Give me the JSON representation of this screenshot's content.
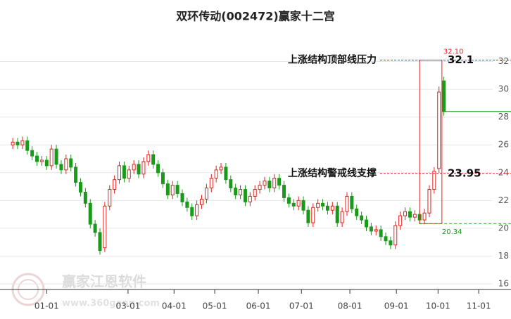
{
  "chart_data": {
    "type": "candlestick",
    "title": "双环传动(002472)赢家十二宫",
    "watermark": "赢家江恩软件",
    "watermark_url": "www.360gann.com",
    "up_color": "#e8201d",
    "down_color": "#1a9a1a",
    "xlim": [
      -0.6,
      101.7
    ],
    "ylim": [
      15.6,
      34.4
    ],
    "xticks": [
      {
        "value": 7.0,
        "label": "01-01"
      },
      {
        "value": 23.8,
        "label": "03-01"
      },
      {
        "value": 33.3,
        "label": "04-01"
      },
      {
        "value": 41.7,
        "label": "05-01"
      },
      {
        "value": 50.7,
        "label": "06-01"
      },
      {
        "value": 59.6,
        "label": "07-01"
      },
      {
        "value": 69.6,
        "label": "08-01"
      },
      {
        "value": 79.2,
        "label": "09-01"
      },
      {
        "value": 87.8,
        "label": "10-01"
      },
      {
        "value": 96.2,
        "label": "11-01"
      }
    ],
    "yticks": [
      16,
      18,
      20,
      22,
      24,
      26,
      28,
      30,
      32
    ],
    "grid": true,
    "open": [
      26.0,
      26.2,
      26.0,
      26.3,
      25.6,
      25.2,
      24.8,
      24.9,
      24.5,
      25.7,
      24.6,
      24.2,
      25.0,
      24.4,
      23.3,
      22.6,
      21.8,
      20.3,
      19.7,
      18.6,
      21.6,
      22.8,
      23.5,
      24.5,
      23.6,
      24.2,
      24.6,
      23.9,
      24.8,
      25.3,
      24.6,
      24.0,
      23.2,
      22.4,
      23.1,
      22.5,
      21.9,
      21.5,
      20.9,
      21.7,
      22.1,
      22.9,
      23.6,
      24.2,
      24.4,
      23.5,
      22.9,
      22.4,
      22.8,
      21.9,
      22.3,
      22.8,
      23.1,
      23.4,
      22.9,
      23.6,
      23.1,
      22.2,
      21.8,
      21.6,
      22.0,
      21.3,
      20.4,
      21.5,
      21.8,
      21.6,
      21.3,
      21.6,
      20.4,
      21.2,
      22.3,
      21.4,
      20.9,
      20.6,
      20.1,
      19.8,
      19.9,
      19.4,
      19.1,
      18.8,
      20.2,
      20.9,
      21.2,
      20.8,
      21.0,
      20.6,
      21.1,
      22.8,
      24.3,
      30.6
    ],
    "high": [
      26.5,
      26.5,
      26.6,
      26.6,
      25.9,
      25.5,
      25.2,
      25.2,
      26.0,
      26.0,
      24.9,
      25.3,
      25.3,
      24.7,
      23.6,
      22.9,
      22.1,
      20.6,
      20.0,
      21.9,
      23.1,
      23.8,
      24.8,
      24.8,
      24.5,
      24.9,
      24.9,
      25.1,
      25.6,
      25.6,
      24.9,
      24.3,
      23.5,
      23.4,
      23.4,
      22.8,
      22.2,
      21.8,
      22.0,
      22.4,
      23.2,
      23.9,
      24.5,
      24.7,
      24.7,
      23.8,
      23.2,
      23.1,
      23.1,
      22.6,
      23.1,
      23.4,
      23.7,
      23.7,
      23.9,
      23.9,
      23.4,
      22.5,
      22.1,
      22.3,
      22.3,
      21.6,
      21.8,
      22.1,
      22.1,
      21.9,
      21.9,
      21.9,
      21.5,
      22.6,
      22.6,
      21.7,
      21.2,
      20.9,
      20.4,
      20.2,
      20.2,
      19.7,
      19.4,
      20.5,
      21.2,
      21.5,
      21.5,
      21.3,
      21.3,
      21.4,
      23.1,
      24.4,
      30.2,
      30.9
    ],
    "low": [
      25.7,
      25.7,
      25.7,
      25.3,
      24.9,
      24.5,
      24.5,
      24.2,
      24.2,
      24.3,
      23.9,
      23.9,
      24.1,
      23.0,
      22.3,
      21.5,
      20.0,
      19.4,
      18.1,
      18.3,
      21.3,
      22.5,
      23.2,
      23.3,
      23.3,
      23.9,
      23.6,
      23.6,
      24.5,
      24.3,
      23.7,
      22.9,
      22.1,
      22.1,
      22.2,
      21.6,
      21.2,
      20.6,
      20.6,
      21.4,
      21.8,
      22.6,
      23.3,
      23.9,
      23.2,
      22.6,
      22.1,
      22.1,
      21.6,
      21.6,
      22.0,
      22.5,
      22.8,
      22.6,
      22.6,
      22.8,
      21.9,
      21.5,
      21.3,
      21.3,
      21.0,
      20.1,
      20.1,
      21.2,
      21.3,
      21.0,
      21.0,
      20.1,
      20.1,
      20.9,
      21.1,
      20.6,
      20.3,
      19.8,
      19.5,
      19.5,
      19.1,
      18.8,
      18.5,
      18.5,
      19.9,
      20.6,
      20.5,
      20.5,
      20.3,
      20.3,
      20.8,
      22.5,
      24.0,
      28.1
    ],
    "close": [
      26.2,
      26.0,
      26.3,
      25.6,
      25.2,
      24.8,
      24.9,
      24.5,
      25.7,
      24.6,
      24.2,
      25.0,
      24.4,
      23.3,
      22.6,
      21.8,
      20.3,
      19.7,
      18.4,
      21.6,
      22.8,
      23.5,
      24.5,
      23.6,
      24.2,
      24.6,
      23.9,
      24.8,
      25.3,
      24.6,
      24.0,
      23.2,
      22.4,
      23.1,
      22.5,
      21.9,
      21.5,
      20.9,
      21.7,
      22.1,
      22.9,
      23.6,
      24.2,
      24.4,
      23.5,
      22.9,
      22.4,
      22.8,
      21.9,
      22.3,
      22.8,
      23.1,
      23.4,
      22.9,
      23.6,
      23.1,
      22.2,
      21.8,
      21.6,
      22.0,
      21.3,
      20.4,
      21.5,
      21.8,
      21.6,
      21.3,
      21.6,
      20.4,
      21.2,
      22.3,
      21.4,
      20.9,
      20.6,
      20.1,
      19.8,
      19.9,
      19.4,
      19.1,
      18.8,
      20.2,
      20.9,
      21.2,
      20.8,
      21.0,
      20.6,
      21.1,
      22.8,
      24.1,
      29.8,
      28.4
    ],
    "annotations": [
      {
        "text": "上涨结构顶部线压力",
        "value": {
          "value": 32.1,
          "label": "32.1"
        }
      },
      {
        "text": "上涨结构警戒线支撑",
        "value": 23.95
      }
    ],
    "box": {
      "x": [
        84.0,
        88.6
      ],
      "top": {
        "value": 32.1,
        "label": "32.10"
      },
      "bottom": 20.34
    }
  }
}
